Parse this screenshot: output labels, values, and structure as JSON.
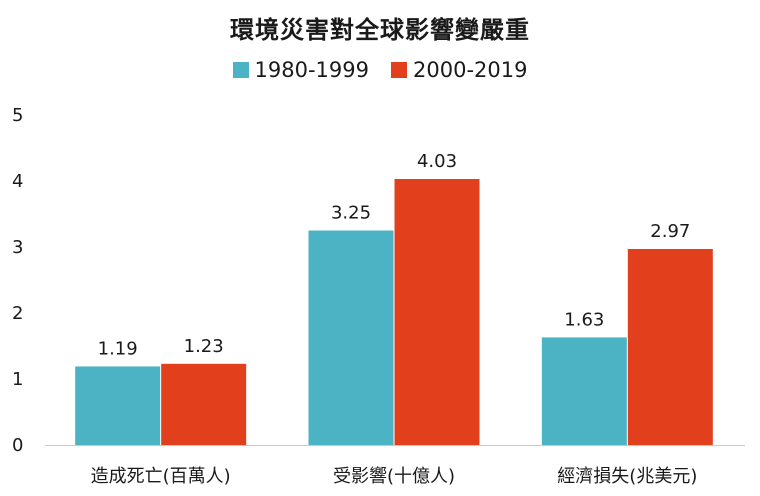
{
  "chart_data": {
    "type": "bar",
    "title": "環境災害對全球影響變嚴重",
    "categories": [
      "造成死亡(百萬人)",
      "受影響(十億人)",
      "經濟損失(兆美元)"
    ],
    "series": [
      {
        "name": "1980-1999",
        "color": "#4bb3c4",
        "values": [
          1.19,
          3.25,
          1.63
        ]
      },
      {
        "name": "2000-2019",
        "color": "#e2401c",
        "values": [
          1.23,
          4.03,
          2.97
        ]
      }
    ],
    "value_labels": [
      [
        "1.19",
        "3.25",
        "1.63"
      ],
      [
        "1.23",
        "4.03",
        "2.97"
      ]
    ],
    "y_ticks": [
      "0",
      "1",
      "2",
      "3",
      "4",
      "5"
    ],
    "ylim": [
      0,
      5
    ],
    "grid": false,
    "legend": "top-center",
    "xlabel": "",
    "ylabel": ""
  }
}
